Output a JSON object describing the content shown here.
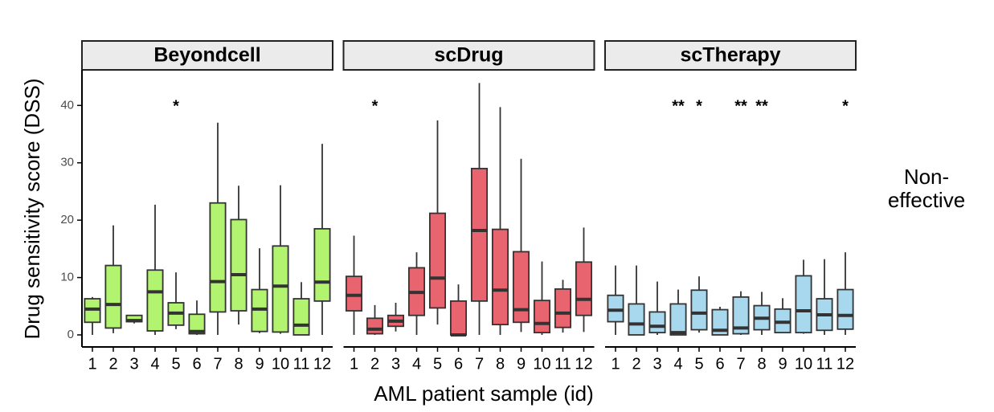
{
  "chart_data": [
    {
      "type": "box",
      "title": "Beyondcell",
      "color": "#b2f46f",
      "show_yaxis": true,
      "categories": [
        "1",
        "2",
        "3",
        "4",
        "5",
        "6",
        "7",
        "8",
        "9",
        "10",
        "11",
        "12"
      ],
      "whisker_low": [
        0,
        0.3,
        2,
        0,
        1,
        0,
        0,
        1.8,
        0.3,
        0.2,
        0,
        0
      ],
      "q1": [
        2.2,
        1.2,
        2.3,
        0.7,
        1.7,
        0.2,
        4,
        4.2,
        0.6,
        0.5,
        0,
        5.9
      ],
      "median": [
        4.5,
        5.3,
        2.5,
        7.5,
        3.8,
        0.6,
        9.3,
        10.5,
        4.5,
        8.5,
        1.7,
        9.2
      ],
      "q3": [
        6.3,
        12.1,
        3.4,
        11.3,
        5.6,
        3.6,
        23,
        20.1,
        7.9,
        15.5,
        6.3,
        18.5
      ],
      "whisker_high": [
        6.6,
        19.1,
        3.4,
        22.7,
        10.9,
        6,
        37,
        26,
        15.1,
        26.1,
        9.2,
        33.3
      ],
      "sig_labels": [
        null,
        null,
        null,
        null,
        "*",
        null,
        null,
        null,
        null,
        null,
        null,
        null
      ],
      "ylim": [
        -2.1,
        46.2
      ],
      "yticks": [
        0,
        10,
        20,
        30,
        40
      ]
    },
    {
      "type": "box",
      "title": "scDrug",
      "color": "#e8646f",
      "show_yaxis": false,
      "categories": [
        "1",
        "2",
        "3",
        "4",
        "5",
        "6",
        "7",
        "8",
        "9",
        "10",
        "11",
        "12"
      ],
      "whisker_low": [
        0,
        0,
        0.6,
        0,
        1.8,
        0,
        0,
        0,
        0.5,
        0,
        0.4,
        0.5
      ],
      "q1": [
        4.2,
        0.2,
        1.5,
        3.4,
        4.7,
        0,
        5.9,
        1.8,
        2.2,
        0.4,
        1.3,
        3.4
      ],
      "median": [
        6.9,
        1,
        2.4,
        7.4,
        9.9,
        0,
        18.2,
        7.8,
        4.4,
        2,
        3.8,
        6.2
      ],
      "q3": [
        10.2,
        2.9,
        3.4,
        11.7,
        21.2,
        5.9,
        29,
        18.4,
        14.5,
        6,
        8,
        12.7
      ],
      "whisker_high": [
        17.3,
        5.2,
        5.6,
        14.4,
        37.4,
        8.8,
        43.9,
        39.7,
        30.7,
        12.8,
        9.6,
        18.7
      ],
      "sig_labels": [
        null,
        "*",
        null,
        null,
        null,
        null,
        null,
        null,
        null,
        null,
        null,
        null
      ],
      "ylim": [
        -2.1,
        46.2
      ],
      "yticks": [
        0,
        10,
        20,
        30,
        40
      ]
    },
    {
      "type": "box",
      "title": "scTherapy",
      "color": "#a8d8ee",
      "show_yaxis": false,
      "categories": [
        "1",
        "2",
        "3",
        "4",
        "5",
        "6",
        "7",
        "8",
        "9",
        "10",
        "11",
        "12"
      ],
      "whisker_low": [
        0,
        0,
        0,
        0,
        0.4,
        0,
        0,
        0,
        0.3,
        0.2,
        0,
        0
      ],
      "q1": [
        2.3,
        0,
        0.4,
        0,
        0.9,
        0,
        0.2,
        0.9,
        0.4,
        0.4,
        0.8,
        1
      ],
      "median": [
        4.3,
        1.9,
        1.5,
        0.4,
        3.8,
        0.8,
        1.2,
        2.9,
        2.2,
        4.2,
        3.5,
        3.4
      ],
      "q3": [
        6.9,
        5.4,
        4,
        5.4,
        7.8,
        4.4,
        6.6,
        5.1,
        4.5,
        10.3,
        6.3,
        7.9
      ],
      "whisker_high": [
        12.1,
        12.1,
        9.3,
        7.9,
        10.2,
        4.9,
        7.6,
        7.5,
        6.4,
        13.1,
        13.2,
        14.4
      ],
      "sig_labels": [
        null,
        null,
        null,
        "**",
        "*",
        null,
        "**",
        "**",
        null,
        null,
        null,
        "*"
      ],
      "ylim": [
        -2.1,
        46.2
      ],
      "yticks": [
        0,
        10,
        20,
        30,
        40
      ]
    }
  ],
  "figure": {
    "xlabel": "AML patient sample (id)",
    "ylabel": "Drug sensitivity score (DSS)",
    "side_label": [
      "Non-",
      "effective"
    ]
  }
}
